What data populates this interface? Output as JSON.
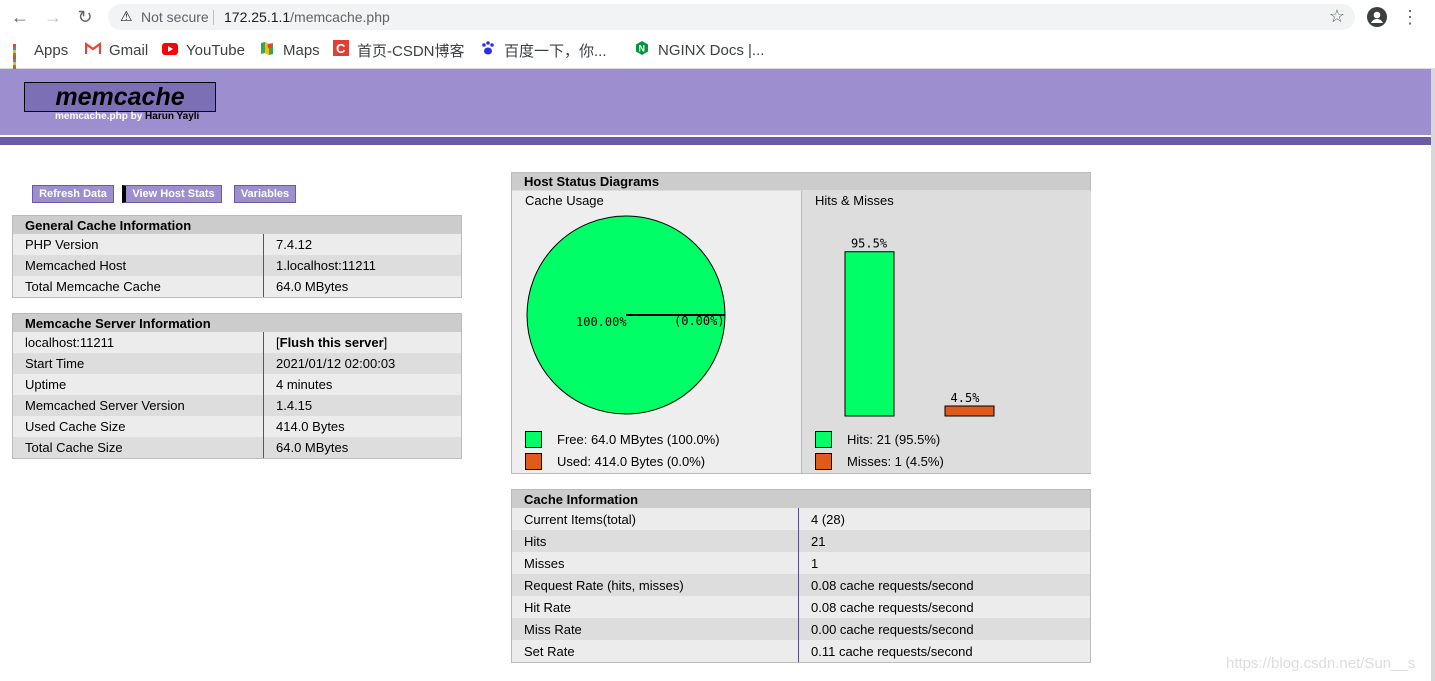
{
  "browser": {
    "security_label": "Not secure",
    "url_host": "172.25.1.1",
    "url_path": "/memcache.php"
  },
  "bookmarks": [
    {
      "label": "Apps",
      "icon": "apps-grid-icon"
    },
    {
      "label": "Gmail",
      "icon": "gmail-icon"
    },
    {
      "label": "YouTube",
      "icon": "youtube-icon"
    },
    {
      "label": "Maps",
      "icon": "maps-icon"
    },
    {
      "label": "首页-CSDN博客",
      "icon": "csdn-icon"
    },
    {
      "label": "百度一下，你...",
      "icon": "baidu-icon"
    },
    {
      "label": "NGINX Docs |...",
      "icon": "nginx-icon"
    }
  ],
  "header": {
    "logo": "memcache",
    "byline_prefix": "memcache.php by ",
    "author": "Harun Yayli"
  },
  "menu": {
    "refresh": "Refresh Data",
    "host_stats": "View Host Stats",
    "variables": "Variables"
  },
  "general": {
    "title": "General Cache Information",
    "rows": [
      {
        "k": "PHP Version",
        "v": "7.4.12"
      },
      {
        "k": "Memcached Host",
        "v": "1.localhost:11211"
      },
      {
        "k": "Total Memcache Cache",
        "v": "64.0 MBytes"
      }
    ]
  },
  "server": {
    "title": "Memcache Server Information",
    "host": "localhost:11211",
    "flush_open": "[",
    "flush_label": "Flush this server",
    "flush_close": "]",
    "rows": [
      {
        "k": "Start Time",
        "v": "2021/01/12 02:00:03"
      },
      {
        "k": "Uptime",
        "v": "4 minutes"
      },
      {
        "k": "Memcached Server Version",
        "v": "1.4.15"
      },
      {
        "k": "Used Cache Size",
        "v": "414.0 Bytes"
      },
      {
        "k": "Total Cache Size",
        "v": "64.0 MBytes"
      }
    ]
  },
  "diagrams": {
    "title": "Host Status Diagrams",
    "usage_title": "Cache Usage",
    "hits_title": "Hits & Misses",
    "pie_free_label": "100.00%",
    "pie_used_label": "(0.00%)",
    "hits_bar_label": "95.5%",
    "misses_bar_label": "4.5%",
    "legend_free": "Free: 64.0 MBytes (100.0%)",
    "legend_used": "Used: 414.0 Bytes (0.0%)",
    "legend_hits": "Hits: 21 (95.5%)",
    "legend_misses": "Misses: 1 (4.5%)",
    "free_fraction": 1.0,
    "hits_fraction": 0.955,
    "misses_fraction": 0.045,
    "colors": {
      "green": "#00ff66",
      "orange": "#e05a1a"
    }
  },
  "cache": {
    "title": "Cache Information",
    "rows": [
      {
        "k": "Current Items(total)",
        "v": "4 (28)"
      },
      {
        "k": "Hits",
        "v": "21"
      },
      {
        "k": "Misses",
        "v": "1"
      },
      {
        "k": "Request Rate (hits, misses)",
        "v": "0.08 cache requests/second"
      },
      {
        "k": "Hit Rate",
        "v": "0.08 cache requests/second"
      },
      {
        "k": "Miss Rate",
        "v": "0.00 cache requests/second"
      },
      {
        "k": "Set Rate",
        "v": "0.11 cache requests/second"
      }
    ]
  },
  "watermark": "https://blog.csdn.net/Sun__s"
}
